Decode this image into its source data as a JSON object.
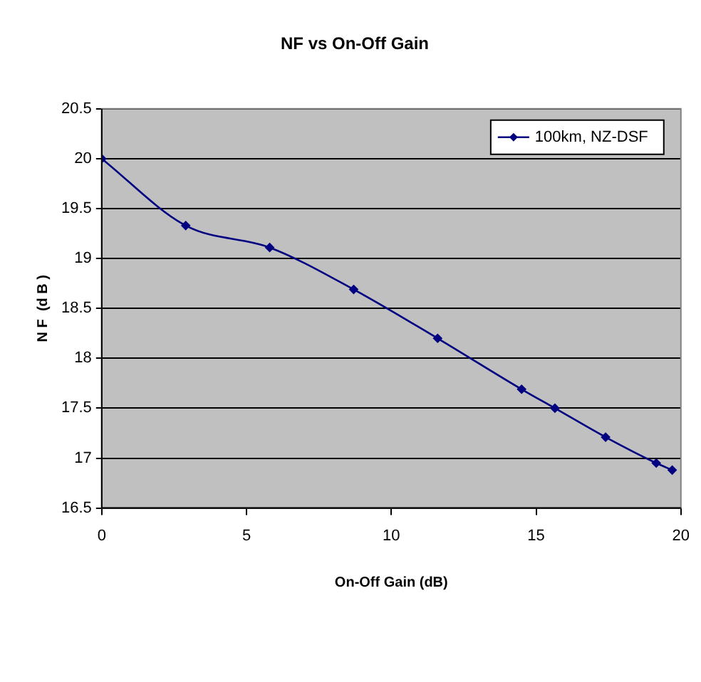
{
  "chart_data": {
    "type": "line",
    "title": "NF vs On-Off Gain",
    "xlabel": "On-Off Gain (dB)",
    "ylabel": "N F  (d B )",
    "x": [
      0,
      2.9,
      5.8,
      8.7,
      11.6,
      14.5,
      15.65,
      17.4,
      19.15,
      19.7
    ],
    "series": [
      {
        "name": "100km, NZ-DSF",
        "color": "#000080",
        "values": [
          20,
          19.33,
          19.11,
          18.69,
          18.2,
          17.69,
          17.5,
          17.21,
          16.95,
          16.88
        ]
      }
    ],
    "xlim": [
      0,
      20
    ],
    "xticks": [
      0,
      5,
      10,
      15,
      20
    ],
    "ylim": [
      16.5,
      20.5
    ],
    "yticks": [
      16.5,
      17,
      17.5,
      18,
      18.5,
      19,
      19.5,
      20,
      20.5
    ],
    "grid": "y",
    "legend": "top right",
    "marker": "diamond",
    "line_style": "solid"
  }
}
